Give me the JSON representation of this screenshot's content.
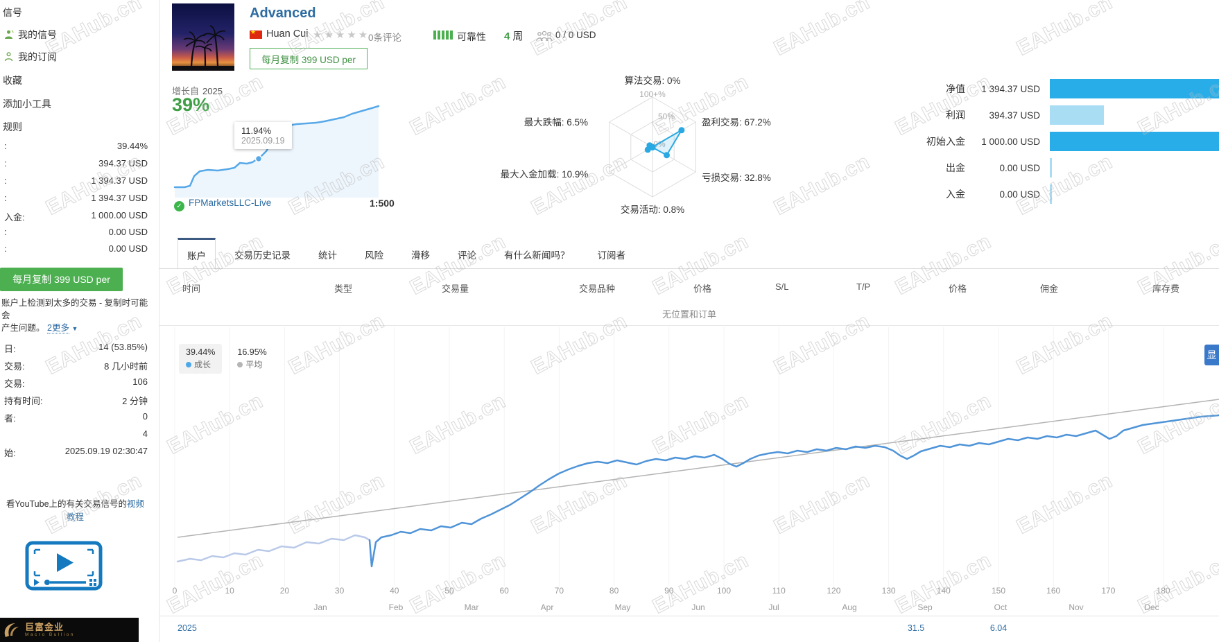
{
  "watermark": {
    "text": "EAHub.cn"
  },
  "sidebar": {
    "nav": [
      {
        "label": "信号"
      },
      {
        "label": "我的信号"
      },
      {
        "label": "我的订阅"
      },
      {
        "label": "收藏"
      },
      {
        "label": "添加小工具"
      },
      {
        "label": "规则"
      }
    ],
    "stats_top": [
      {
        "label": ":",
        "value": "39.44%"
      },
      {
        "label": ":",
        "value": "394.37 USD"
      },
      {
        "label": ":",
        "value": "1 394.37 USD"
      },
      {
        "label": ":",
        "value": "1 394.37 USD"
      },
      {
        "label": "入金:",
        "value": "1 000.00 USD"
      },
      {
        "label": ":",
        "value": "0.00 USD"
      },
      {
        "label": ":",
        "value": "0.00 USD"
      }
    ],
    "copy_button_label": "每月复制 399 USD per",
    "warning": {
      "line1": "账户上检测到太多的交易 - 复制时可能会",
      "line2": "产生问题。",
      "more_link": "2更多",
      "arrow": "▼"
    },
    "stats_bottom": [
      {
        "label": "日:",
        "value": "14 (53.85%)"
      },
      {
        "label": "交易:",
        "value": "8 几小时前"
      },
      {
        "label": "交易:",
        "value": "106"
      },
      {
        "label": "持有时间:",
        "value": "2 分钟"
      },
      {
        "label": "者:",
        "value": "0"
      },
      {
        "label": "",
        "value": "4"
      },
      {
        "label": "始:",
        "value": "2025.09.19 02:30:47"
      }
    ],
    "youtube_promo": {
      "text": "看YouTube上的有关交易信号的",
      "link": "视频教程"
    },
    "banner": {
      "title": "巨富金业",
      "subtitle": "Macro Bullion"
    }
  },
  "header": {
    "title": "Advanced",
    "author": "Huan Cui",
    "stars": "★★★★★",
    "reviews": "0条评论",
    "reliability_label": "可靠性",
    "age_value": "4",
    "age_unit": "周",
    "funds": "0 / 0 USD",
    "price_button": "每月复制 399 USD per"
  },
  "broker": {
    "name": "FPMarketsLLC-Live",
    "leverage": "1:500"
  },
  "tabs": [
    {
      "label": "账户"
    },
    {
      "label": "交易历史记录"
    },
    {
      "label": "统计"
    },
    {
      "label": "风险"
    },
    {
      "label": "滑移"
    },
    {
      "label": "评论"
    },
    {
      "label": "有什么新闻吗？"
    },
    {
      "label": "订阅者"
    }
  ],
  "account_stats": [
    {
      "label": "净值",
      "value": "1 394.37 USD"
    },
    {
      "label": "利润",
      "value": "394.37 USD"
    },
    {
      "label": "初始入金",
      "value": "1 000.00 USD"
    },
    {
      "label": "出金",
      "value": "0.00 USD"
    },
    {
      "label": "入金",
      "value": "0.00 USD"
    }
  ],
  "table": {
    "headers": [
      "时间",
      "类型",
      "交易量",
      "交易品种",
      "价格",
      "S/L",
      "T/P",
      "价格",
      "佣金",
      "库存费"
    ],
    "empty": "无位置和订单"
  },
  "clipped_badge": "显",
  "chart_data": [
    {
      "type": "line",
      "name": "growth-mini-chart",
      "label_prefix": "增长自",
      "label_year": "2025",
      "growth_value": "39%",
      "tooltip_value": "11.94%",
      "tooltip_date": "2025.09.19",
      "line_color": "#56a8e8"
    },
    {
      "type": "radar",
      "name": "signal-quality-radar",
      "rings": [
        "100+%",
        "50%",
        "0%"
      ],
      "axes": [
        {
          "label": "算法交易: 0%",
          "value": 0
        },
        {
          "label": "盈利交易: 67.2%",
          "value": 67.2
        },
        {
          "label": "亏损交易: 32.8%",
          "value": 32.8
        },
        {
          "label": "交易活动: 0.8%",
          "value": 0.8
        },
        {
          "label": "最大入金加载: 10.9%",
          "value": 10.9
        },
        {
          "label": "最大跌幅: 6.5%",
          "value": 6.5
        }
      ],
      "line_color": "#29a8e2"
    },
    {
      "type": "line",
      "name": "equity-growth-chart",
      "legend": [
        {
          "value": "39.44%",
          "label": "成长",
          "color": "#4da7e8"
        },
        {
          "value": "16.95%",
          "label": "平均",
          "color": "#aaaaaa"
        }
      ],
      "x_ticks": [
        0,
        10,
        20,
        30,
        40,
        50,
        60,
        70,
        80,
        90,
        100,
        110,
        120,
        130,
        140,
        150,
        160,
        170,
        180
      ],
      "months": [
        "Jan",
        "Feb",
        "Mar",
        "Apr",
        "May",
        "Jun",
        "Jul",
        "Aug",
        "Sep",
        "Oct",
        "Nov",
        "Dec"
      ],
      "year": "2025",
      "footer_values": [
        "31.5",
        "6.04"
      ],
      "growth_pct": 39.44,
      "avg_pct": 16.95,
      "line_color": "#4f94d8",
      "trend_color": "#b3b3b3"
    }
  ]
}
